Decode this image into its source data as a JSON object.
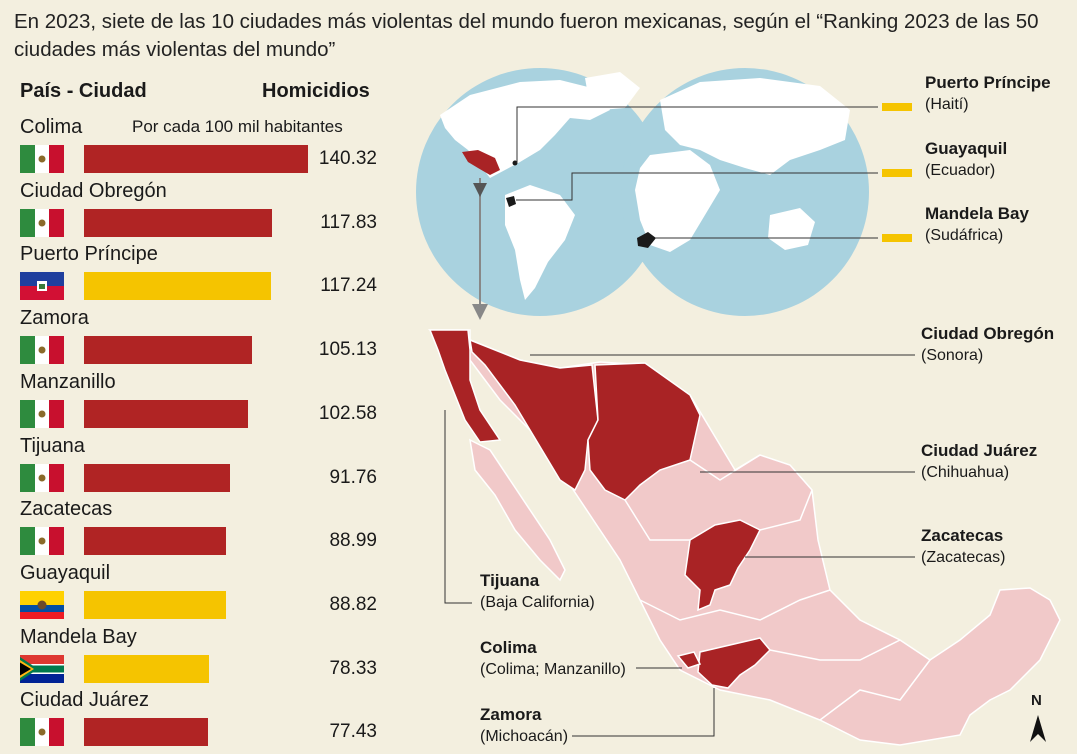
{
  "title": "En 2023, siete de las 10 ciudades más violentas del mundo fueron mexicanas, según el “Ranking 2023 de las 50 ciudades más violentas del mundo”",
  "header_left": "País - Ciudad",
  "header_right": "Homicidios",
  "header_sub": "Por cada 100 mil habitantes",
  "colors": {
    "mexico_bar": "#b02424",
    "foreign_bar": "#f5c400",
    "ocean": "#a9d2df",
    "land": "#ffffff",
    "mexico_states": "#f1c9c9",
    "highlight_states": "#a92325"
  },
  "chart_data": {
    "type": "bar",
    "orientation": "horizontal",
    "categories": [
      "Colima",
      "Ciudad Obregón",
      "Puerto Príncipe",
      "Zamora",
      "Manzanillo",
      "Tijuana",
      "Zacatecas",
      "Guayaquil",
      "Mandela Bay",
      "Ciudad Juárez"
    ],
    "countries": [
      "mexico",
      "mexico",
      "haiti",
      "mexico",
      "mexico",
      "mexico",
      "mexico",
      "ecuador",
      "south-africa",
      "mexico"
    ],
    "values": [
      140.32,
      117.83,
      117.24,
      105.13,
      102.58,
      91.76,
      88.99,
      88.82,
      78.33,
      77.43
    ],
    "value_labels": [
      "140.32",
      "117.83",
      "117.24",
      "105.13",
      "102.58",
      "91.76",
      "88.99",
      "88.82",
      "78.33",
      "77.43"
    ],
    "xlim": [
      0,
      140.32
    ]
  },
  "world_labels": [
    {
      "name": "Puerto Príncipe",
      "sub": "(Haití)"
    },
    {
      "name": "Guayaquil",
      "sub": "(Ecuador)"
    },
    {
      "name": "Mandela Bay",
      "sub": "(Sudáfrica)"
    }
  ],
  "mexico_labels": [
    {
      "name": "Ciudad Obregón",
      "sub": "(Sonora)"
    },
    {
      "name": "Ciudad Juárez",
      "sub": "(Chihuahua)"
    },
    {
      "name": "Zacatecas",
      "sub": "(Zacatecas)"
    },
    {
      "name": "Tijuana",
      "sub": "(Baja California)"
    },
    {
      "name": "Colima",
      "sub": "(Colima; Manzanillo)"
    },
    {
      "name": "Zamora",
      "sub": "(Michoacán)"
    }
  ],
  "north_label": "N"
}
